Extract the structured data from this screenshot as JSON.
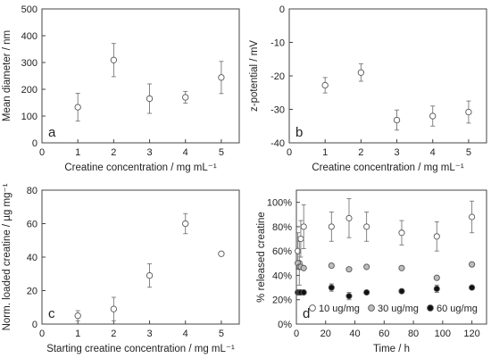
{
  "chart_data": [
    {
      "panel": "a",
      "type": "scatter",
      "xlabel": "Creatine concentration / mg mL⁻¹",
      "ylabel": "Mean diameter / nm",
      "xlim": [
        0,
        5.5
      ],
      "ylim": [
        0,
        500
      ],
      "xticks": [
        0,
        1,
        2,
        3,
        4,
        5
      ],
      "yticks": [
        0,
        100,
        200,
        300,
        400,
        500
      ],
      "x": [
        1,
        2,
        3,
        4,
        5
      ],
      "y": [
        133,
        309,
        165,
        170,
        244
      ],
      "err": [
        52,
        62,
        55,
        22,
        60
      ],
      "marker": "open-circle",
      "legend": "none"
    },
    {
      "panel": "b",
      "type": "scatter",
      "xlabel": "Creatine concentration / mg mL⁻¹",
      "ylabel": "z-potential / mV",
      "xlim": [
        0,
        5.5
      ],
      "ylim": [
        -40,
        0
      ],
      "xticks": [
        0,
        1,
        2,
        3,
        4,
        5
      ],
      "yticks": [
        -40,
        -30,
        -20,
        -10,
        0
      ],
      "x": [
        1,
        2,
        3,
        4,
        5
      ],
      "y": [
        -22.8,
        -19,
        -33.2,
        -32,
        -30.8
      ],
      "err": [
        2.3,
        2.6,
        3,
        3,
        3.3
      ],
      "marker": "open-circle",
      "legend": "none"
    },
    {
      "panel": "c",
      "type": "scatter",
      "xlabel": "Starting creatine concentration / mg mL⁻¹",
      "ylabel": "Norm. loaded creatine / µg mg⁻¹",
      "xlim": [
        0,
        5.5
      ],
      "ylim": [
        0,
        80
      ],
      "xticks": [
        0,
        1,
        2,
        3,
        4,
        5
      ],
      "yticks": [
        0,
        20,
        40,
        60,
        80
      ],
      "x": [
        1,
        2,
        3,
        4,
        5
      ],
      "y": [
        5,
        9,
        29,
        60,
        42
      ],
      "err": [
        3,
        7,
        7,
        6,
        0
      ],
      "marker": "open-circle",
      "legend": "none"
    },
    {
      "panel": "d",
      "type": "scatter",
      "xlabel": "Time / h",
      "ylabel": "% released creatine",
      "xlim": [
        0,
        130
      ],
      "ylim": [
        0,
        110
      ],
      "xticks": [
        0,
        20,
        40,
        60,
        80,
        100,
        120
      ],
      "yticks": [
        0,
        20,
        40,
        60,
        80,
        100
      ],
      "ytick_suffix": "%",
      "legend": "bottom-right",
      "series": [
        {
          "name": "10 ug/mg",
          "marker": "open-circle",
          "color": "#ffffff",
          "x": [
            1,
            2,
            3,
            5,
            24,
            36,
            48,
            72,
            96,
            120
          ],
          "y": [
            60,
            50,
            70,
            80,
            80,
            87,
            80,
            75,
            72,
            88
          ],
          "err": [
            15,
            18,
            15,
            18,
            12,
            16,
            12,
            10,
            12,
            13
          ]
        },
        {
          "name": "30 ug/mg",
          "marker": "gray-circle",
          "color": "#bdbdbd",
          "x": [
            1,
            2,
            3,
            5,
            24,
            36,
            48,
            72,
            96,
            120
          ],
          "y": [
            50,
            47,
            47,
            46,
            48,
            45,
            47,
            46,
            38,
            49
          ],
          "err": [
            0,
            0,
            0,
            0,
            0,
            0,
            0,
            0,
            0,
            0
          ]
        },
        {
          "name": "60 ug/mg",
          "marker": "filled-circle",
          "color": "#111111",
          "x": [
            1,
            2,
            3,
            5,
            24,
            36,
            48,
            72,
            96,
            120
          ],
          "y": [
            26,
            26,
            26,
            26,
            30,
            23,
            26,
            27,
            29,
            30
          ],
          "err": [
            0,
            0,
            0,
            0,
            3,
            3,
            0,
            0,
            3,
            0
          ]
        }
      ]
    }
  ]
}
